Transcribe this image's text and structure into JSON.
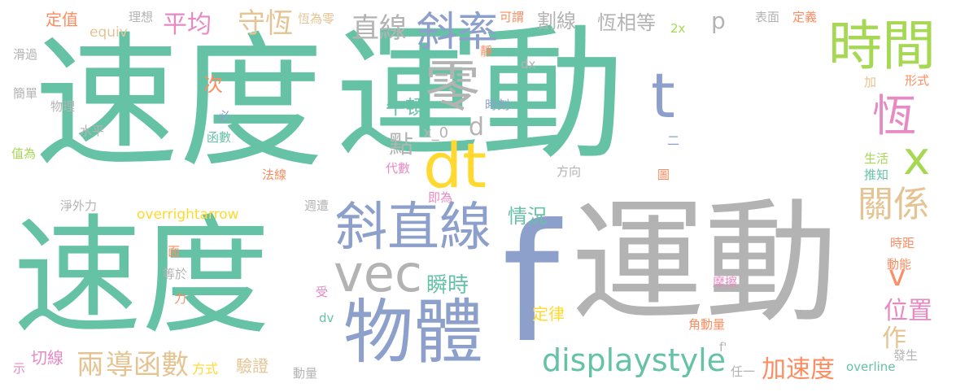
{
  "palette": {
    "green": "#66c2a5",
    "orange": "#fc8d62",
    "blue": "#8da0cb",
    "pink": "#e78ac3",
    "lime": "#a6d854",
    "yellow": "#ffd92f",
    "tan": "#e5c494",
    "gray": "#b3b3b3"
  },
  "words": [
    {
      "text": "速度",
      "color": "green"
    },
    {
      "text": "運動",
      "color": "green"
    },
    {
      "text": "速度",
      "color": "green"
    },
    {
      "text": "運動",
      "color": "gray"
    },
    {
      "text": "f",
      "color": "blue"
    },
    {
      "text": "物體",
      "color": "blue"
    },
    {
      "text": "斜直線",
      "color": "blue"
    },
    {
      "text": "vec",
      "color": "gray"
    },
    {
      "text": "時間",
      "color": "lime"
    },
    {
      "text": "零",
      "color": "gray"
    },
    {
      "text": "dt",
      "color": "yellow"
    },
    {
      "text": "t",
      "color": "blue"
    },
    {
      "text": "斜率",
      "color": "blue"
    },
    {
      "text": "displaystyle",
      "color": "green"
    },
    {
      "text": "恆",
      "color": "pink"
    },
    {
      "text": "關係",
      "color": "tan"
    },
    {
      "text": "x",
      "color": "lime"
    },
    {
      "text": "直線",
      "color": "gray"
    },
    {
      "text": "守恆",
      "color": "tan"
    },
    {
      "text": "平均",
      "color": "pink"
    },
    {
      "text": "加速度",
      "color": "orange"
    },
    {
      "text": "導函數",
      "color": "tan"
    },
    {
      "text": "位置",
      "color": "pink"
    },
    {
      "text": "瞬時",
      "color": "green"
    },
    {
      "text": "點",
      "color": "gray"
    },
    {
      "text": "v",
      "color": "orange"
    },
    {
      "text": "作",
      "color": "tan"
    },
    {
      "text": "兩",
      "color": "tan"
    },
    {
      "text": "恆相等",
      "color": "gray"
    },
    {
      "text": "割線",
      "color": "gray"
    },
    {
      "text": "d",
      "color": "gray"
    },
    {
      "text": "情況",
      "color": "green"
    },
    {
      "text": "牛頓",
      "color": "green"
    },
    {
      "text": "x_0",
      "color": "gray"
    },
    {
      "text": "切線",
      "color": "pink"
    },
    {
      "text": "定律",
      "color": "yellow"
    },
    {
      "text": "驗證",
      "color": "tan"
    },
    {
      "text": "方式",
      "color": "yellow"
    },
    {
      "text": "次",
      "color": "orange"
    },
    {
      "text": "p",
      "color": "gray"
    },
    {
      "text": "定值",
      "color": "orange"
    },
    {
      "text": "overrightarrow",
      "color": "yellow"
    },
    {
      "text": "equiv",
      "color": "tan"
    },
    {
      "text": "理想",
      "color": "gray"
    },
    {
      "text": "恆為零",
      "color": "tan"
    },
    {
      "text": "可謂",
      "color": "orange"
    },
    {
      "text": "2x",
      "color": "lime"
    },
    {
      "text": "表面",
      "color": "gray"
    },
    {
      "text": "定義",
      "color": "orange"
    },
    {
      "text": "滑過",
      "color": "gray"
    },
    {
      "text": "簡單",
      "color": "gray"
    },
    {
      "text": "物理",
      "color": "gray"
    },
    {
      "text": "水平",
      "color": "gray"
    },
    {
      "text": "函數",
      "color": "green"
    },
    {
      "text": "值為",
      "color": "lime"
    },
    {
      "text": "法線",
      "color": "orange"
    },
    {
      "text": "淨外力",
      "color": "gray"
    },
    {
      "text": "週遭",
      "color": "gray"
    },
    {
      "text": "代數",
      "color": "pink"
    },
    {
      "text": "即為",
      "color": "pink"
    },
    {
      "text": "方向",
      "color": "gray"
    },
    {
      "text": "時刻",
      "color": "blue"
    },
    {
      "text": "形式",
      "color": "orange"
    },
    {
      "text": "生活",
      "color": "lime"
    },
    {
      "text": "推知",
      "color": "green"
    },
    {
      "text": "圖",
      "color": "orange"
    },
    {
      "text": "時距",
      "color": "orange"
    },
    {
      "text": "動能",
      "color": "orange"
    },
    {
      "text": "摩擦",
      "color": "pink"
    },
    {
      "text": "角動量",
      "color": "orange"
    },
    {
      "text": "發生",
      "color": "gray"
    },
    {
      "text": "overline",
      "color": "green"
    },
    {
      "text": "任一",
      "color": "gray"
    },
    {
      "text": "動量",
      "color": "gray"
    },
    {
      "text": "等於",
      "color": "gray"
    },
    {
      "text": "示",
      "color": "pink"
    },
    {
      "text": "dv",
      "color": "green"
    },
    {
      "text": "受",
      "color": "pink"
    },
    {
      "text": "力",
      "color": "orange"
    },
    {
      "text": "面",
      "color": "orange"
    },
    {
      "text": "a",
      "color": "gray"
    },
    {
      "text": "f'",
      "color": "gray"
    },
    {
      "text": "二",
      "color": "blue"
    },
    {
      "text": "加",
      "color": "tan"
    },
    {
      "text": "dx",
      "color": "gray"
    },
    {
      "text": "靜",
      "color": "orange"
    },
    {
      "text": "必",
      "color": "blue"
    }
  ]
}
